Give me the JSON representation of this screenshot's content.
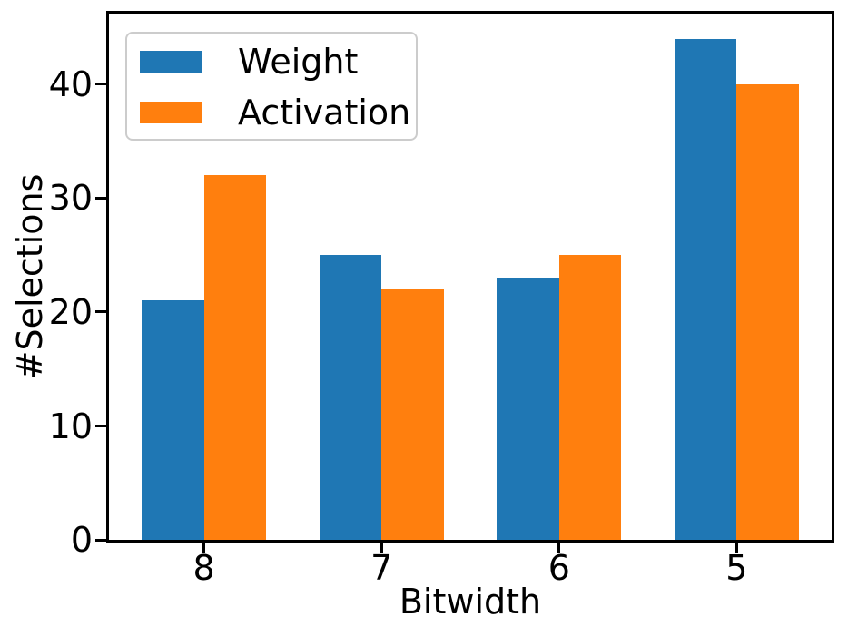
{
  "figure": {
    "background": "#ffffff",
    "text_color": "#000000",
    "legend_border_color": "#cccccc"
  },
  "chart_data": {
    "type": "bar",
    "title": "",
    "xlabel": "Bitwidth",
    "ylabel": "#Selections",
    "categories": [
      "8",
      "7",
      "6",
      "5"
    ],
    "series": [
      {
        "name": "Weight",
        "color": "#1f77b4",
        "values": [
          21,
          25,
          23,
          44
        ]
      },
      {
        "name": "Activation",
        "color": "#ff7f0e",
        "values": [
          32,
          22,
          25,
          40
        ]
      }
    ],
    "yticks": [
      0,
      10,
      20,
      30,
      40
    ],
    "ylim": [
      0,
      46.2
    ],
    "xlim_pad": 0.535,
    "bar_width": 0.35,
    "grid": false,
    "legend": {
      "position": "upper-left",
      "entries": [
        "Weight",
        "Activation"
      ]
    }
  }
}
